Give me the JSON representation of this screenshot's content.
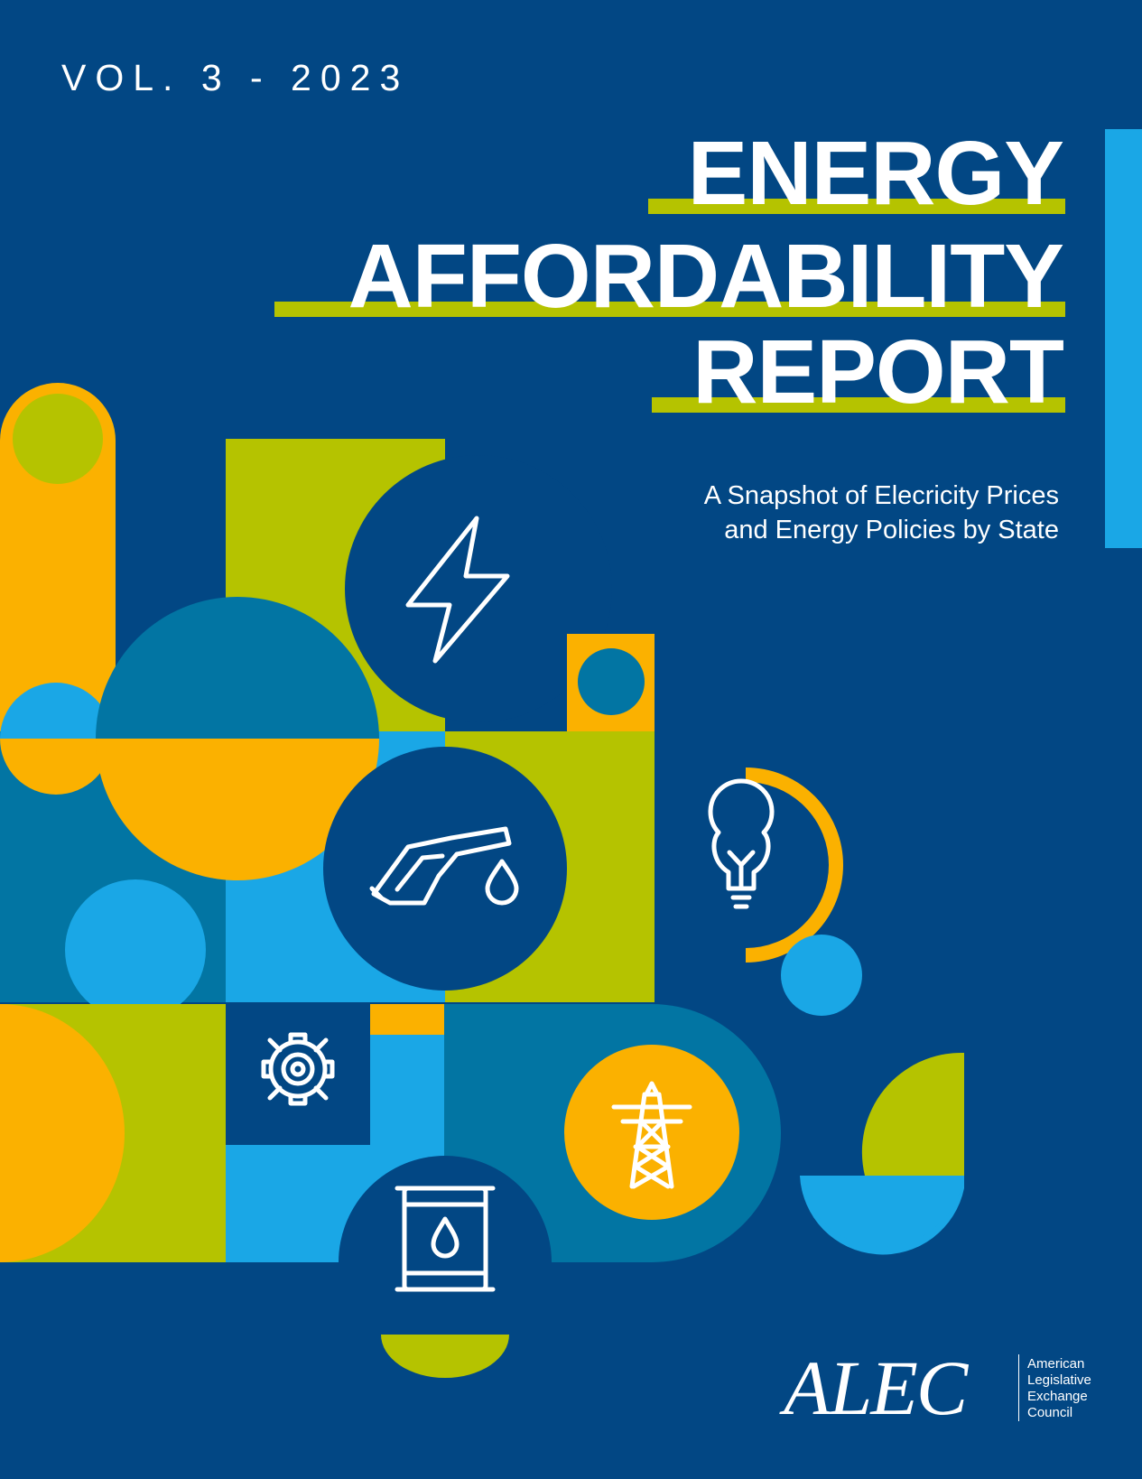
{
  "cover": {
    "volume": "VOL. 3 - 2023",
    "title_lines": [
      "ENERGY",
      "AFFORDABILITY",
      "REPORT"
    ],
    "subtitle_lines": [
      "A Snapshot of Elecricity Prices",
      "and Energy Policies by State"
    ]
  },
  "publisher": {
    "logo_text": "ALEC",
    "name_lines": [
      "American",
      "Legislative",
      "Exchange",
      "Council"
    ]
  },
  "icons": [
    "lightning-icon",
    "fuel-nozzle-icon",
    "oil-drop-icon",
    "light-bulb-icon",
    "gear-icon",
    "transmission-tower-icon",
    "oil-barrel-icon"
  ],
  "colors": {
    "background": "#024784",
    "orange": "#fbb100",
    "lime": "#b5c300",
    "sky_blue": "#1aa7e6",
    "teal": "#0275a3",
    "white": "#ffffff"
  }
}
